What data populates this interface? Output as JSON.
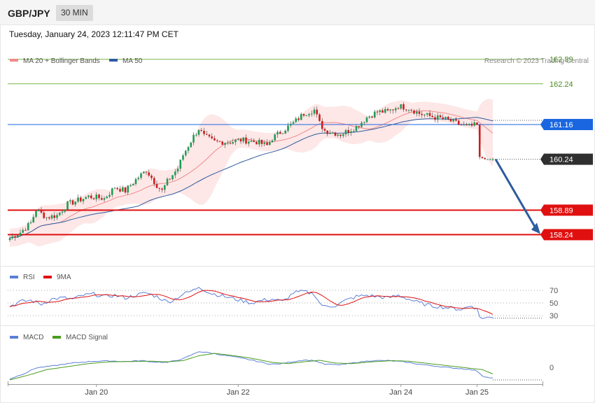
{
  "header": {
    "symbol": "GBP/JPY",
    "timeframe": "30 MIN",
    "datetime": "Tuesday, January 24, 2023 12:11:47 PM CET"
  },
  "colors": {
    "ma20": "#f08a8a",
    "bollinger_fill": "#fde3e3",
    "ma50": "#2e5c9e",
    "candle_up": "#1f9d55",
    "candle_down": "#d11b1b",
    "resistance": "#7ab648",
    "pivot": "#1a66e0",
    "support": "#e01010",
    "current": "#2f2f2f",
    "arrow": "#2e5c9e",
    "rsi": "#5b7fd6",
    "rsi_ma": "#e01010",
    "macd": "#5b7fd6",
    "macd_signal": "#4a9d1e"
  },
  "chart_data": [
    {
      "type": "candlestick",
      "legend": {
        "items": [
          "MA 20 + Bollinger Bands",
          "MA 50"
        ],
        "placement": "top-left"
      },
      "watermark": "Research © 2023 Trading Central",
      "x_tick_labels": [
        "Jan 20",
        "Jan 22",
        "Jan 24",
        "Jan 25"
      ],
      "x_tick_candle_index": [
        33,
        87,
        149,
        178
      ],
      "levels": [
        {
          "value": 162.89,
          "label": "162.89",
          "role": "resistance"
        },
        {
          "value": 162.24,
          "label": "162.24",
          "role": "resistance"
        },
        {
          "value": 161.16,
          "label": "161.16",
          "role": "pivot"
        },
        {
          "value": 160.24,
          "label": "160.24",
          "role": "current"
        },
        {
          "value": 158.89,
          "label": "158.89",
          "role": "support"
        },
        {
          "value": 158.24,
          "label": "158.24",
          "role": "support"
        }
      ],
      "ylim": [
        157.45,
        163.2
      ],
      "forecast_arrow": {
        "from_value": 160.24,
        "to_value": 158.24
      },
      "close_anchors": [
        [
          0,
          158.15
        ],
        [
          4,
          158.3
        ],
        [
          8,
          158.55
        ],
        [
          10,
          158.9
        ],
        [
          14,
          158.7
        ],
        [
          18,
          158.75
        ],
        [
          22,
          159.05
        ],
        [
          26,
          159.15
        ],
        [
          30,
          159.25
        ],
        [
          36,
          159.2
        ],
        [
          40,
          159.5
        ],
        [
          44,
          159.4
        ],
        [
          48,
          159.7
        ],
        [
          52,
          159.95
        ],
        [
          56,
          159.55
        ],
        [
          58,
          159.4
        ],
        [
          60,
          159.65
        ],
        [
          64,
          160.0
        ],
        [
          66,
          160.35
        ],
        [
          70,
          160.85
        ],
        [
          72,
          161.05
        ],
        [
          74,
          160.85
        ],
        [
          78,
          160.7
        ],
        [
          84,
          160.7
        ],
        [
          88,
          160.75
        ],
        [
          94,
          160.7
        ],
        [
          98,
          160.6
        ],
        [
          100,
          160.8
        ],
        [
          104,
          161.0
        ],
        [
          108,
          161.2
        ],
        [
          112,
          161.45
        ],
        [
          116,
          161.55
        ],
        [
          118,
          161.2
        ],
        [
          120,
          161.0
        ],
        [
          126,
          160.9
        ],
        [
          132,
          161.1
        ],
        [
          136,
          161.35
        ],
        [
          140,
          161.5
        ],
        [
          144,
          161.5
        ],
        [
          148,
          161.65
        ],
        [
          152,
          161.6
        ],
        [
          156,
          161.45
        ],
        [
          162,
          161.35
        ],
        [
          166,
          161.3
        ],
        [
          170,
          161.2
        ],
        [
          174,
          161.1
        ],
        [
          178,
          161.15
        ],
        [
          179,
          160.3
        ],
        [
          181,
          160.24
        ],
        [
          184,
          160.24
        ]
      ]
    },
    {
      "type": "line",
      "legend": {
        "items": [
          "RSI",
          "9MA"
        ],
        "placement": "top-left"
      },
      "y_tick_labels": [
        "70",
        "50",
        "30"
      ],
      "y_ticks": [
        70,
        50,
        30
      ],
      "ylim": [
        18,
        82
      ],
      "rsi_anchors": [
        [
          0,
          45
        ],
        [
          4,
          52
        ],
        [
          8,
          54
        ],
        [
          12,
          48
        ],
        [
          16,
          56
        ],
        [
          20,
          58
        ],
        [
          24,
          56
        ],
        [
          28,
          62
        ],
        [
          32,
          64
        ],
        [
          36,
          60
        ],
        [
          40,
          62
        ],
        [
          44,
          58
        ],
        [
          48,
          62
        ],
        [
          52,
          66
        ],
        [
          56,
          60
        ],
        [
          60,
          52
        ],
        [
          62,
          54
        ],
        [
          66,
          64
        ],
        [
          70,
          70
        ],
        [
          72,
          76
        ],
        [
          76,
          66
        ],
        [
          80,
          62
        ],
        [
          84,
          58
        ],
        [
          88,
          54
        ],
        [
          92,
          50
        ],
        [
          96,
          54
        ],
        [
          100,
          56
        ],
        [
          104,
          52
        ],
        [
          108,
          66
        ],
        [
          112,
          68
        ],
        [
          116,
          64
        ],
        [
          118,
          50
        ],
        [
          120,
          44
        ],
        [
          124,
          46
        ],
        [
          128,
          54
        ],
        [
          132,
          60
        ],
        [
          136,
          62
        ],
        [
          140,
          60
        ],
        [
          144,
          58
        ],
        [
          148,
          62
        ],
        [
          152,
          56
        ],
        [
          156,
          50
        ],
        [
          160,
          46
        ],
        [
          164,
          44
        ],
        [
          168,
          42
        ],
        [
          172,
          40
        ],
        [
          176,
          46
        ],
        [
          178,
          40
        ],
        [
          179,
          28
        ],
        [
          181,
          26
        ],
        [
          184,
          28
        ]
      ]
    },
    {
      "type": "line",
      "legend": {
        "items": [
          "MACD",
          "MACD Signal"
        ],
        "placement": "top-left"
      },
      "y_tick_labels": [
        "0"
      ],
      "y_ticks": [
        0
      ],
      "ylim": [
        -0.35,
        0.95
      ],
      "macd_anchors": [
        [
          0,
          -0.25
        ],
        [
          6,
          -0.05
        ],
        [
          10,
          0.12
        ],
        [
          16,
          0.18
        ],
        [
          24,
          0.28
        ],
        [
          32,
          0.34
        ],
        [
          38,
          0.35
        ],
        [
          44,
          0.33
        ],
        [
          50,
          0.36
        ],
        [
          54,
          0.32
        ],
        [
          60,
          0.3
        ],
        [
          66,
          0.42
        ],
        [
          70,
          0.58
        ],
        [
          72,
          0.66
        ],
        [
          76,
          0.62
        ],
        [
          80,
          0.56
        ],
        [
          86,
          0.48
        ],
        [
          92,
          0.38
        ],
        [
          98,
          0.26
        ],
        [
          102,
          0.24
        ],
        [
          106,
          0.3
        ],
        [
          112,
          0.38
        ],
        [
          116,
          0.36
        ],
        [
          120,
          0.24
        ],
        [
          126,
          0.22
        ],
        [
          132,
          0.3
        ],
        [
          138,
          0.36
        ],
        [
          144,
          0.36
        ],
        [
          150,
          0.32
        ],
        [
          156,
          0.24
        ],
        [
          162,
          0.18
        ],
        [
          168,
          0.12
        ],
        [
          174,
          0.08
        ],
        [
          178,
          0.02
        ],
        [
          180,
          -0.14
        ],
        [
          182,
          -0.2
        ],
        [
          184,
          -0.22
        ]
      ],
      "signal_anchors": [
        [
          0,
          -0.28
        ],
        [
          8,
          -0.1
        ],
        [
          14,
          0.06
        ],
        [
          22,
          0.16
        ],
        [
          30,
          0.26
        ],
        [
          38,
          0.32
        ],
        [
          46,
          0.33
        ],
        [
          54,
          0.34
        ],
        [
          60,
          0.32
        ],
        [
          66,
          0.36
        ],
        [
          72,
          0.52
        ],
        [
          78,
          0.6
        ],
        [
          84,
          0.54
        ],
        [
          92,
          0.44
        ],
        [
          100,
          0.3
        ],
        [
          106,
          0.26
        ],
        [
          112,
          0.32
        ],
        [
          118,
          0.37
        ],
        [
          124,
          0.28
        ],
        [
          130,
          0.26
        ],
        [
          138,
          0.32
        ],
        [
          146,
          0.36
        ],
        [
          152,
          0.34
        ],
        [
          160,
          0.26
        ],
        [
          168,
          0.18
        ],
        [
          174,
          0.12
        ],
        [
          180,
          0.06
        ],
        [
          184,
          -0.08
        ]
      ]
    }
  ]
}
